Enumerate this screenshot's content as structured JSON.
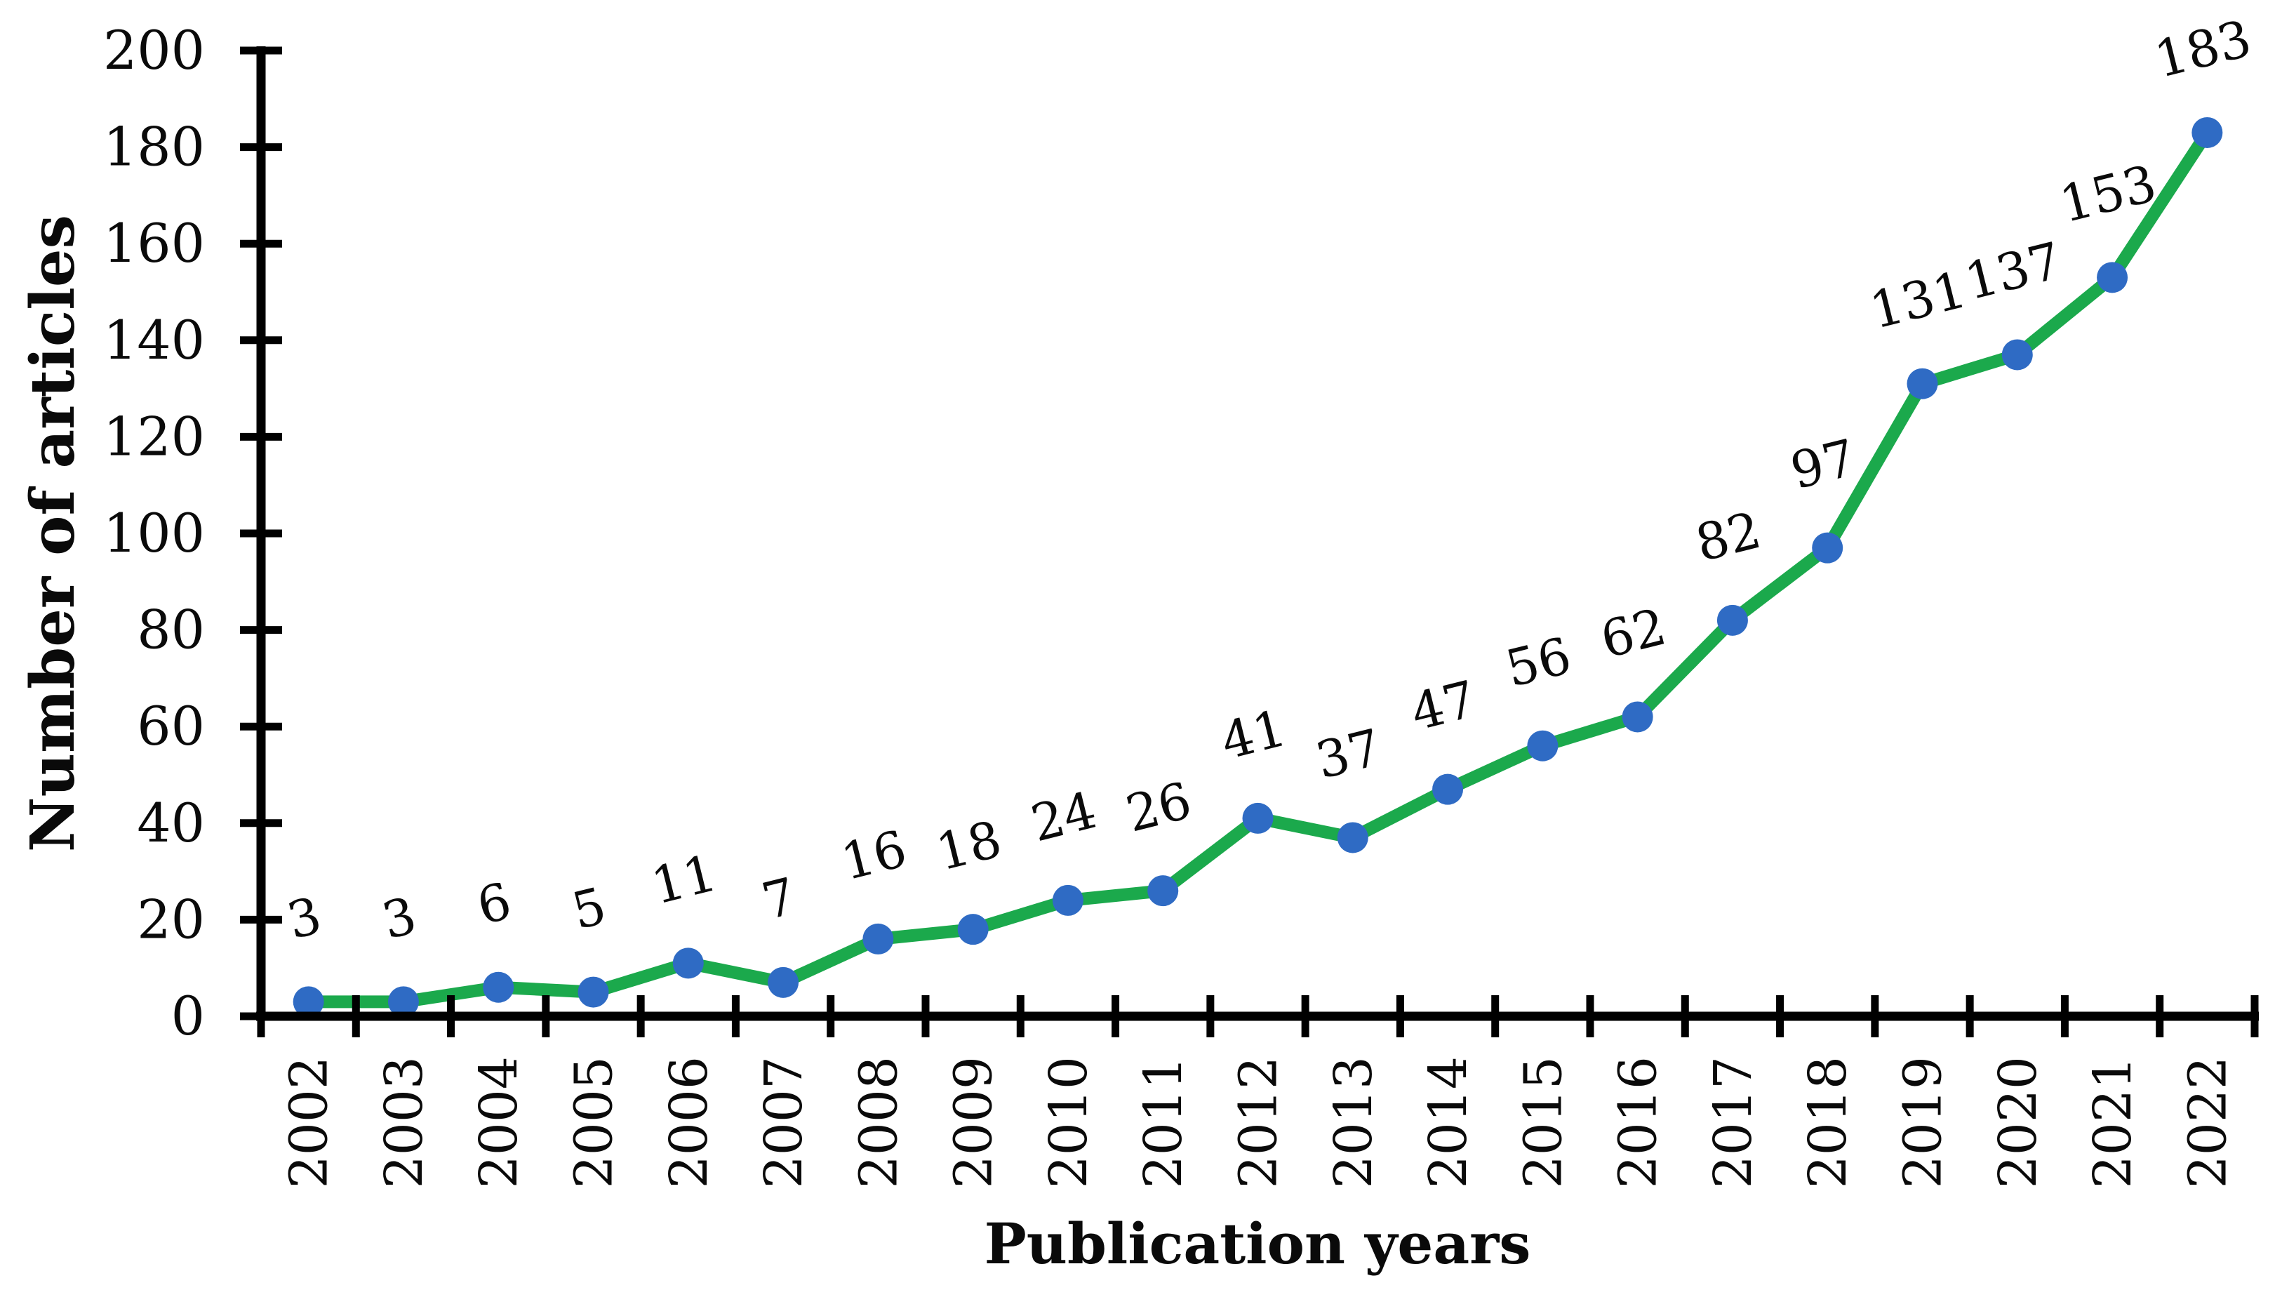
{
  "chart_data": {
    "type": "line",
    "title": "",
    "xlabel": "Publication years",
    "ylabel": "Number of articles",
    "categories": [
      "2002",
      "2003",
      "2004",
      "2005",
      "2006",
      "2007",
      "2008",
      "2009",
      "2010",
      "2011",
      "2012",
      "2013",
      "2014",
      "2015",
      "2016",
      "2017",
      "2018",
      "2019",
      "2020",
      "2021",
      "2022"
    ],
    "series": [
      {
        "name": "Number of articles",
        "values": [
          3,
          3,
          6,
          5,
          11,
          7,
          16,
          18,
          24,
          26,
          41,
          37,
          47,
          56,
          62,
          82,
          97,
          131,
          137,
          153,
          183
        ]
      }
    ],
    "values": [
      3,
      3,
      6,
      5,
      11,
      7,
      16,
      18,
      24,
      26,
      41,
      37,
      47,
      56,
      62,
      82,
      97,
      131,
      137,
      153,
      183
    ],
    "data_labels": [
      3,
      3,
      6,
      5,
      11,
      7,
      16,
      18,
      24,
      26,
      41,
      37,
      47,
      56,
      62,
      82,
      97,
      131,
      137,
      153,
      183
    ],
    "ylim": [
      0,
      200
    ],
    "ytick_step": 20,
    "ytick_labels": [
      "0",
      "20",
      "40",
      "60",
      "80",
      "100",
      "120",
      "140",
      "160",
      "180",
      "200"
    ],
    "grid": false,
    "legend_position": "none",
    "colors": {
      "line": "#1BA94C",
      "marker": "#2F6BC4",
      "axis": "#000000",
      "text": "#0A0A0A",
      "background": "#FFFFFF"
    }
  }
}
